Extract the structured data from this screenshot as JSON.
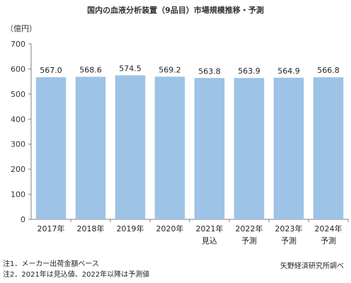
{
  "chart_data": {
    "type": "bar",
    "title": "国内の血液分析装置（9品目）市場規模推移・予測",
    "unit_label": "（億円）",
    "categories": [
      "2017年",
      "2018年",
      "2019年",
      "2020年",
      "2021年",
      "2022年",
      "2023年",
      "2024年"
    ],
    "category_sublabels": [
      "",
      "",
      "",
      "",
      "見込",
      "予測",
      "予測",
      "予測"
    ],
    "values": [
      567.0,
      568.6,
      574.5,
      569.2,
      563.8,
      563.9,
      564.9,
      566.8
    ],
    "value_labels": [
      "567.0",
      "568.6",
      "574.5",
      "569.2",
      "563.8",
      "563.9",
      "564.9",
      "566.8"
    ],
    "ylim": [
      0,
      700
    ],
    "yticks": [
      0,
      100,
      200,
      300,
      400,
      500,
      600,
      700
    ],
    "bar_color": "#9DC3E6",
    "grid": false
  },
  "notes": {
    "note1": "注1．メーカー出荷金額ベース",
    "note2": "注2．2021年は見込値、2022年以降は予測値",
    "source": "矢野経済研究所調べ"
  }
}
